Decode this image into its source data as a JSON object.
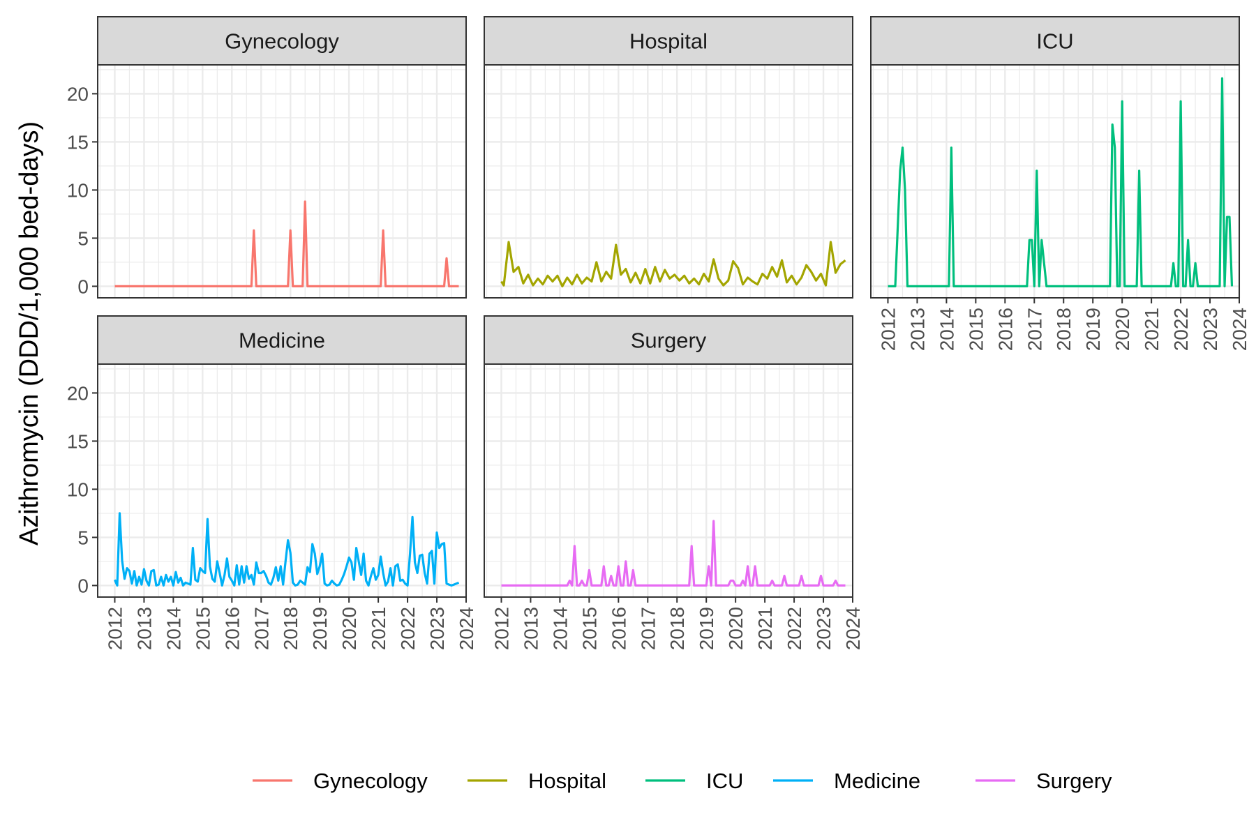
{
  "chart_data": {
    "type": "line",
    "ylabel": "Azithromycin (DDD/1,000 bed-days)",
    "xlabel": "",
    "ylim": [
      -1.2,
      23
    ],
    "x_range": [
      "2011-06-01",
      "2024-01-01"
    ],
    "y_ticks": [
      0,
      5,
      10,
      15,
      20
    ],
    "x_ticks": [
      2012,
      2013,
      2014,
      2015,
      2016,
      2017,
      2018,
      2019,
      2020,
      2021,
      2022,
      2023,
      2024
    ],
    "grid": true,
    "legend_position": "bottom",
    "series": [
      {
        "name": "Gynecology",
        "color": "#F8766D",
        "x": [
          "2012-01",
          "2014-10",
          "2016-09",
          "2016-10",
          "2016-11",
          "2017-12",
          "2018-01",
          "2018-02",
          "2018-06",
          "2018-07",
          "2018-08",
          "2021-02",
          "2021-03",
          "2021-04",
          "2023-04",
          "2023-05",
          "2023-06",
          "2023-10"
        ],
        "values": [
          0,
          0,
          0,
          5.8,
          0,
          0,
          5.8,
          0,
          0,
          8.8,
          0,
          0,
          5.8,
          0,
          0,
          2.9,
          0,
          0
        ]
      },
      {
        "name": "Hospital",
        "color": "#A3A500",
        "x": [
          "2012-01",
          "2012-02",
          "2012-04",
          "2012-06",
          "2012-08",
          "2012-10",
          "2012-12",
          "2013-02",
          "2013-04",
          "2013-06",
          "2013-08",
          "2013-10",
          "2013-12",
          "2014-02",
          "2014-04",
          "2014-06",
          "2014-08",
          "2014-10",
          "2014-12",
          "2015-02",
          "2015-04",
          "2015-06",
          "2015-08",
          "2015-10",
          "2015-12",
          "2016-02",
          "2016-04",
          "2016-06",
          "2016-08",
          "2016-10",
          "2016-12",
          "2017-02",
          "2017-04",
          "2017-06",
          "2017-08",
          "2017-10",
          "2017-12",
          "2018-02",
          "2018-04",
          "2018-06",
          "2018-08",
          "2018-10",
          "2018-12",
          "2019-02",
          "2019-04",
          "2019-06",
          "2019-08",
          "2019-10",
          "2019-12",
          "2020-02",
          "2020-04",
          "2020-06",
          "2020-08",
          "2020-10",
          "2020-12",
          "2021-02",
          "2021-04",
          "2021-06",
          "2021-08",
          "2021-10",
          "2021-12",
          "2022-02",
          "2022-04",
          "2022-06",
          "2022-08",
          "2022-10",
          "2022-12",
          "2023-02",
          "2023-04",
          "2023-06",
          "2023-08",
          "2023-10"
        ],
        "values": [
          0.5,
          0.1,
          4.6,
          1.5,
          2.0,
          0.3,
          1.2,
          0.1,
          0.8,
          0.2,
          1.1,
          0.5,
          1.1,
          0.0,
          0.9,
          0.2,
          1.2,
          0.3,
          0.9,
          0.5,
          2.5,
          0.5,
          1.5,
          0.8,
          4.3,
          1.2,
          1.8,
          0.4,
          1.4,
          0.3,
          1.8,
          0.3,
          2.0,
          0.5,
          1.7,
          0.8,
          1.2,
          0.6,
          1.1,
          0.3,
          0.8,
          0.2,
          1.3,
          0.5,
          2.8,
          0.8,
          0.1,
          0.6,
          2.6,
          1.9,
          0.2,
          0.9,
          0.5,
          0.2,
          1.3,
          0.8,
          2.0,
          1.0,
          2.7,
          0.4,
          1.1,
          0.2,
          0.9,
          2.2,
          1.5,
          0.6,
          1.3,
          0.1,
          4.6,
          1.4,
          2.3,
          2.7
        ]
      },
      {
        "name": "ICU",
        "color": "#00BF7D",
        "x": [
          "2012-01",
          "2012-04",
          "2012-06",
          "2012-07",
          "2012-08",
          "2012-09",
          "2014-02",
          "2014-03",
          "2014-04",
          "2016-10",
          "2016-11",
          "2016-12",
          "2017-01",
          "2017-02",
          "2017-03",
          "2017-04",
          "2017-05",
          "2017-06",
          "2019-07",
          "2019-08",
          "2019-09",
          "2019-10",
          "2019-11",
          "2019-12",
          "2020-01",
          "2020-02",
          "2020-03",
          "2020-07",
          "2020-08",
          "2020-09",
          "2021-09",
          "2021-10",
          "2021-11",
          "2021-12",
          "2022-01",
          "2022-02",
          "2022-03",
          "2022-04",
          "2022-05",
          "2022-06",
          "2022-07",
          "2022-08",
          "2023-05",
          "2023-06",
          "2023-07",
          "2023-08",
          "2023-09",
          "2023-10"
        ],
        "values": [
          0,
          0,
          12.0,
          14.4,
          10.0,
          0,
          0,
          14.4,
          0,
          0,
          4.8,
          4.8,
          0,
          12.0,
          0,
          4.8,
          2.4,
          0,
          0,
          0,
          16.8,
          14.4,
          0,
          0,
          19.2,
          0,
          0,
          0,
          12.0,
          0,
          0,
          2.4,
          0,
          0,
          19.2,
          0,
          0,
          4.8,
          0,
          0,
          2.4,
          0,
          0,
          21.6,
          0,
          7.2,
          7.2,
          0
        ]
      },
      {
        "name": "Medicine",
        "color": "#00B0F6",
        "x": [
          "2012-01",
          "2012-02",
          "2012-03",
          "2012-04",
          "2012-05",
          "2012-06",
          "2012-07",
          "2012-08",
          "2012-09",
          "2012-10",
          "2012-11",
          "2012-12",
          "2013-01",
          "2013-02",
          "2013-03",
          "2013-04",
          "2013-05",
          "2013-06",
          "2013-07",
          "2013-08",
          "2013-09",
          "2013-10",
          "2013-11",
          "2013-12",
          "2014-01",
          "2014-02",
          "2014-03",
          "2014-04",
          "2014-05",
          "2014-06",
          "2014-07",
          "2014-08",
          "2014-09",
          "2014-10",
          "2014-11",
          "2014-12",
          "2015-01",
          "2015-02",
          "2015-03",
          "2015-04",
          "2015-05",
          "2015-06",
          "2015-07",
          "2015-08",
          "2015-09",
          "2015-10",
          "2015-11",
          "2015-12",
          "2016-01",
          "2016-02",
          "2016-03",
          "2016-04",
          "2016-05",
          "2016-06",
          "2016-07",
          "2016-08",
          "2016-09",
          "2016-10",
          "2016-11",
          "2016-12",
          "2017-01",
          "2017-02",
          "2017-03",
          "2017-04",
          "2017-05",
          "2017-06",
          "2017-07",
          "2017-08",
          "2017-09",
          "2017-10",
          "2017-11",
          "2017-12",
          "2018-01",
          "2018-02",
          "2018-03",
          "2018-04",
          "2018-05",
          "2018-06",
          "2018-07",
          "2018-08",
          "2018-09",
          "2018-10",
          "2018-11",
          "2018-12",
          "2019-01",
          "2019-02",
          "2019-03",
          "2019-04",
          "2019-05",
          "2019-06",
          "2019-07",
          "2019-08",
          "2019-09",
          "2019-10",
          "2019-11",
          "2019-12",
          "2020-01",
          "2020-02",
          "2020-03",
          "2020-04",
          "2020-05",
          "2020-06",
          "2020-07",
          "2020-08",
          "2020-09",
          "2020-10",
          "2020-11",
          "2020-12",
          "2021-01",
          "2021-02",
          "2021-03",
          "2021-04",
          "2021-05",
          "2021-06",
          "2021-07",
          "2021-08",
          "2021-09",
          "2021-10",
          "2021-11",
          "2021-12",
          "2022-01",
          "2022-02",
          "2022-03",
          "2022-04",
          "2022-05",
          "2022-06",
          "2022-07",
          "2022-08",
          "2022-09",
          "2022-10",
          "2022-11",
          "2022-12",
          "2023-01",
          "2023-02",
          "2023-03",
          "2023-04",
          "2023-05",
          "2023-06",
          "2023-07",
          "2023-08",
          "2023-09",
          "2023-10"
        ],
        "values": [
          0.6,
          0.0,
          7.5,
          2.6,
          0.7,
          1.8,
          1.5,
          0.2,
          1.5,
          0.0,
          0.9,
          0.1,
          1.7,
          0.5,
          0.0,
          1.5,
          1.6,
          0.0,
          0.1,
          0.9,
          0.0,
          1.1,
          0.4,
          0.9,
          0.0,
          1.4,
          0.3,
          0.8,
          0.0,
          0.3,
          0.2,
          0.1,
          3.9,
          0.6,
          0.4,
          1.8,
          1.5,
          1.3,
          6.9,
          2.0,
          0.7,
          0.4,
          2.5,
          1.3,
          0.0,
          1.1,
          2.8,
          0.9,
          0.5,
          0.0,
          2.1,
          0.1,
          2.0,
          0.3,
          2.0,
          0.7,
          1.1,
          0.1,
          2.4,
          1.3,
          1.3,
          1.5,
          1.0,
          0.3,
          0.1,
          0.8,
          1.9,
          0.5,
          2.0,
          0.1,
          2.5,
          4.7,
          3.4,
          0.3,
          0.0,
          0.1,
          0.5,
          0.3,
          0.1,
          1.9,
          1.4,
          4.3,
          3.3,
          1.2,
          2.0,
          3.3,
          0.2,
          0.0,
          0.1,
          0.5,
          0.2,
          0.0,
          0.1,
          0.6,
          1.2,
          2.0,
          2.9,
          2.4,
          0.6,
          3.9,
          2.5,
          1.1,
          3.3,
          0.5,
          0.0,
          1.0,
          1.8,
          0.6,
          1.1,
          3.0,
          1.3,
          0.0,
          0.4,
          1.8,
          0.0,
          2.0,
          2.2,
          0.5,
          0.6,
          0.2,
          0.0,
          3.3,
          7.1,
          2.4,
          1.3,
          3.1,
          3.2,
          1.3,
          0.2,
          3.3,
          3.6,
          0.2,
          5.5,
          3.9,
          4.3,
          4.4,
          0.2,
          0.1,
          0.0,
          0.1,
          0.2,
          0.3
        ]
      },
      {
        "name": "Surgery",
        "color": "#E76BF3",
        "x": [
          "2012-01",
          "2014-04",
          "2014-05",
          "2014-06",
          "2014-07",
          "2014-08",
          "2014-09",
          "2014-10",
          "2014-11",
          "2014-12",
          "2015-01",
          "2015-02",
          "2015-03",
          "2015-04",
          "2015-06",
          "2015-07",
          "2015-08",
          "2015-09",
          "2015-10",
          "2015-11",
          "2015-12",
          "2016-01",
          "2016-02",
          "2016-03",
          "2016-04",
          "2016-05",
          "2016-06",
          "2016-07",
          "2016-08",
          "2018-06",
          "2018-07",
          "2018-08",
          "2018-09",
          "2019-01",
          "2019-02",
          "2019-03",
          "2019-04",
          "2019-05",
          "2019-10",
          "2019-11",
          "2019-12",
          "2020-01",
          "2020-03",
          "2020-04",
          "2020-05",
          "2020-06",
          "2020-07",
          "2020-08",
          "2020-09",
          "2020-10",
          "2020-11",
          "2021-03",
          "2021-04",
          "2021-05",
          "2021-08",
          "2021-09",
          "2021-10",
          "2022-03",
          "2022-04",
          "2022-05",
          "2022-11",
          "2022-12",
          "2023-01",
          "2023-05",
          "2023-06",
          "2023-07",
          "2023-10"
        ],
        "values": [
          0,
          0,
          0.5,
          0,
          4.1,
          0,
          0,
          0.5,
          0,
          0,
          1.6,
          0,
          0,
          0,
          0,
          2.0,
          0,
          0,
          1.0,
          0,
          0,
          2.0,
          0,
          0,
          2.5,
          0,
          0,
          1.6,
          0,
          0,
          4.1,
          0,
          0,
          0,
          2.0,
          0,
          6.7,
          0,
          0,
          0.5,
          0.5,
          0,
          0,
          0.5,
          0,
          2.0,
          0,
          0,
          2.0,
          0,
          0,
          0,
          0.5,
          0,
          0,
          1.0,
          0,
          0,
          1.0,
          0,
          0,
          1.0,
          0,
          0,
          0.5,
          0,
          0
        ]
      }
    ],
    "facets": [
      {
        "label": "Gynecology"
      },
      {
        "label": "Hospital"
      },
      {
        "label": "ICU"
      },
      {
        "label": "Medicine"
      },
      {
        "label": "Surgery"
      }
    ]
  }
}
